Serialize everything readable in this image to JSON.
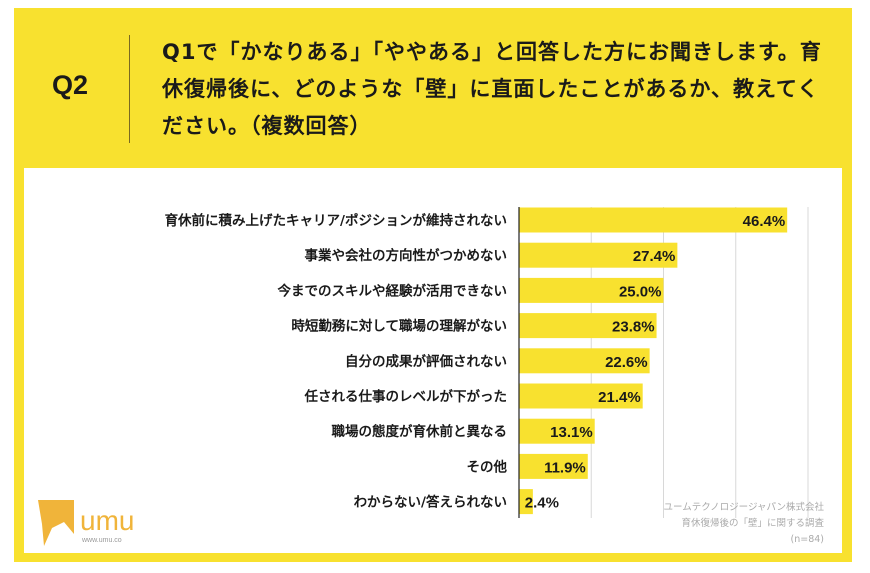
{
  "header": {
    "qnum": "Q2",
    "question": "Q1で「かなりある」「ややある」と回答した方にお聞きします。育休復帰後に、どのような「壁」に直面したことがあるか、教えてください。（複数回答）"
  },
  "chart_data": {
    "type": "bar",
    "orientation": "horizontal",
    "categories": [
      "育休前に積み上げたキャリア/ポジションが維持されない",
      "事業や会社の方向性がつかめない",
      "今までのスキルや経験が活用できない",
      "時短勤務に対して職場の理解がない",
      "自分の成果が評価されない",
      "任される仕事のレベルが下がった",
      "職場の態度が育休前と異なる",
      "その他",
      "わからない/答えられない"
    ],
    "values": [
      46.4,
      27.4,
      25.0,
      23.8,
      22.6,
      21.4,
      13.1,
      11.9,
      2.4
    ],
    "labels": [
      "46.4%",
      "27.4%",
      "25.0%",
      "23.8%",
      "22.6%",
      "21.4%",
      "13.1%",
      "11.9%",
      "2.4%"
    ],
    "xlim": [
      0,
      50
    ],
    "grid": true,
    "bar_color": "#f8e12f"
  },
  "credit": {
    "line1": "ユームテクノロジージャパン株式会社",
    "line2": "育休復帰後の「壁」に関する調査",
    "line3": "(n=84)"
  },
  "logo": {
    "text": "umu",
    "url": "www.umu.co",
    "color": "#f0b43a"
  }
}
